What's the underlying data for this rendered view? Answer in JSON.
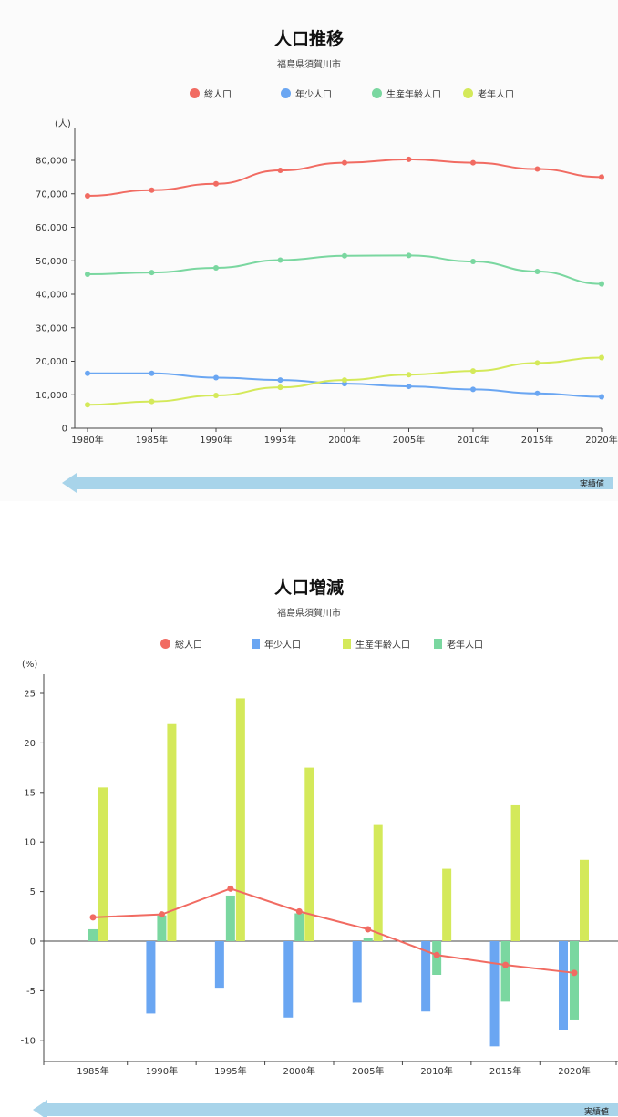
{
  "colors": {
    "total": "#f16b62",
    "youth": "#6aa6f2",
    "working": "#7ad7a0",
    "elderly": "#d4e95a",
    "arrow": "#a8d4ea"
  },
  "chart1": {
    "title": "人口推移",
    "subtitle": "福島県須賀川市",
    "unit": "(人)",
    "arrow_label": "実績値",
    "legend": [
      "総人口",
      "年少人口",
      "生産年齢人口",
      "老年人口"
    ]
  },
  "chart2": {
    "title": "人口増減",
    "subtitle": "福島県須賀川市",
    "unit": "(%)",
    "arrow_label": "実績値",
    "legend": [
      "総人口",
      "年少人口",
      "生産年齢人口",
      "老年人口"
    ]
  },
  "chart_data": [
    {
      "type": "line",
      "title": "人口推移",
      "subtitle": "福島県須賀川市",
      "ylabel": "(人)",
      "categories": [
        "1980年",
        "1985年",
        "1990年",
        "1995年",
        "2000年",
        "2005年",
        "2010年",
        "2015年",
        "2020年"
      ],
      "ylim": [
        0,
        80000
      ],
      "yticks": [
        "0",
        "10,000",
        "20,000",
        "30,000",
        "40,000",
        "50,000",
        "60,000",
        "70,000",
        "80,000"
      ],
      "legend_position": "top",
      "series": [
        {
          "name": "総人口",
          "values": [
            69400,
            71100,
            73000,
            77000,
            79300,
            80300,
            79300,
            77400,
            75000
          ]
        },
        {
          "name": "年少人口",
          "values": [
            16400,
            16400,
            15100,
            14400,
            13300,
            12500,
            11600,
            10400,
            9400
          ]
        },
        {
          "name": "生産年齢人口",
          "values": [
            46000,
            46500,
            47900,
            50200,
            51500,
            51600,
            49800,
            46800,
            43100
          ]
        },
        {
          "name": "老年人口",
          "values": [
            7000,
            8000,
            9800,
            12200,
            14400,
            16000,
            17100,
            19500,
            21100
          ]
        }
      ]
    },
    {
      "type": "bar",
      "title": "人口増減",
      "subtitle": "福島県須賀川市",
      "ylabel": "(%)",
      "categories": [
        "1985年",
        "1990年",
        "1995年",
        "2000年",
        "2005年",
        "2010年",
        "2015年",
        "2020年"
      ],
      "ylim": [
        -11,
        27
      ],
      "yticks": [
        "-10",
        "-5",
        "0",
        "5",
        "10",
        "15",
        "20",
        "25"
      ],
      "legend_position": "top",
      "series": [
        {
          "name": "総人口",
          "kind": "line",
          "values": [
            2.4,
            2.7,
            5.3,
            3.0,
            1.2,
            -1.4,
            -2.4,
            -3.2
          ]
        },
        {
          "name": "年少人口",
          "kind": "bar",
          "values": [
            0,
            -7.3,
            -4.7,
            -7.7,
            -6.2,
            -7.1,
            -10.6,
            -9.0
          ]
        },
        {
          "name": "生産年齢人口",
          "kind": "bar",
          "values": [
            1.2,
            2.6,
            4.6,
            2.8,
            0.3,
            -3.4,
            -6.1,
            -7.9
          ]
        },
        {
          "name": "老年人口",
          "kind": "bar",
          "values": [
            15.5,
            21.9,
            24.5,
            17.5,
            11.8,
            7.3,
            13.7,
            8.2
          ]
        }
      ]
    }
  ]
}
